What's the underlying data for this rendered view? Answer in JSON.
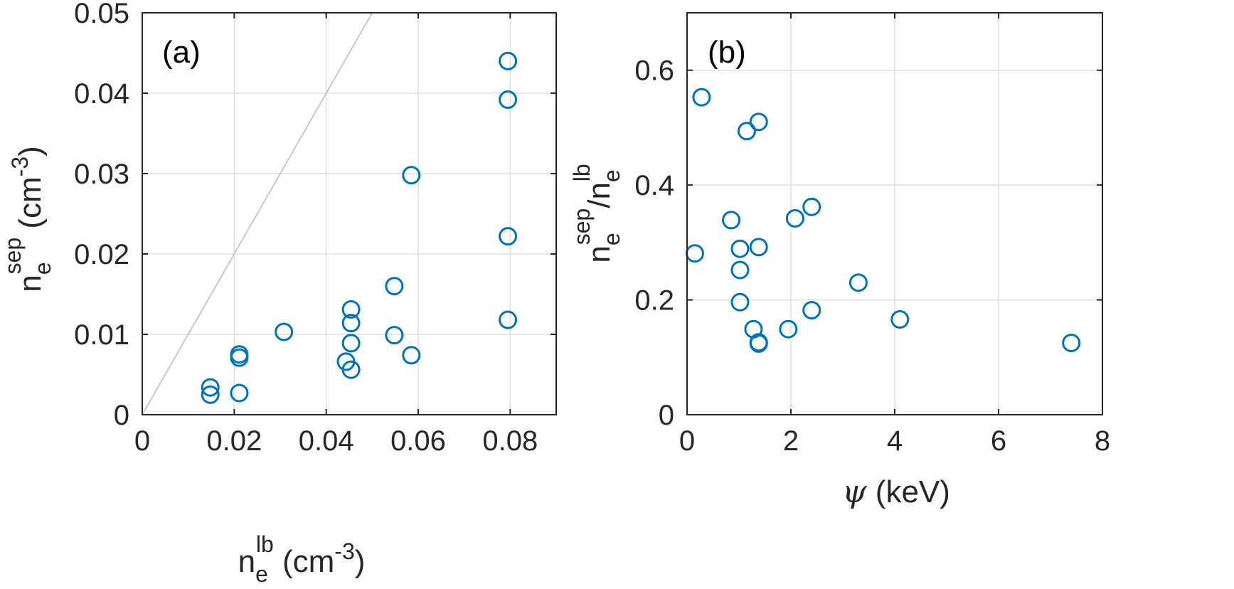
{
  "chart_data": [
    {
      "type": "scatter",
      "panel_label": "(a)",
      "xlabel": {
        "base": "n",
        "sub": "e",
        "sup": "lb",
        "unit_pre": " (cm",
        "unit_sup": "-3",
        "unit_post": ")"
      },
      "ylabel": {
        "base": "n",
        "sub": "e",
        "sup": "sep",
        "unit_pre": " (cm",
        "unit_sup": "-3",
        "unit_post": ")"
      },
      "xlim": [
        0,
        0.09
      ],
      "ylim": [
        0,
        0.05
      ],
      "xticks": [
        0,
        0.02,
        0.04,
        0.06,
        0.08
      ],
      "xtick_labels": [
        "0",
        "0.02",
        "0.04",
        "0.06",
        "0.08"
      ],
      "yticks": [
        0,
        0.01,
        0.02,
        0.03,
        0.04,
        0.05
      ],
      "ytick_labels": [
        "0",
        "0.01",
        "0.02",
        "0.03",
        "0.04",
        "0.05"
      ],
      "grid": true,
      "reference_line": {
        "x": [
          0,
          0.05
        ],
        "y": [
          0,
          0.05
        ],
        "color": "#c8c8c8"
      },
      "marker_color": "#0072BD",
      "points": [
        {
          "x": 0.0148,
          "y": 0.0034
        },
        {
          "x": 0.0148,
          "y": 0.0025
        },
        {
          "x": 0.0211,
          "y": 0.0075
        },
        {
          "x": 0.0211,
          "y": 0.0071
        },
        {
          "x": 0.0211,
          "y": 0.0027
        },
        {
          "x": 0.0308,
          "y": 0.0103
        },
        {
          "x": 0.0443,
          "y": 0.0066
        },
        {
          "x": 0.0454,
          "y": 0.0131
        },
        {
          "x": 0.0454,
          "y": 0.0114
        },
        {
          "x": 0.0454,
          "y": 0.0089
        },
        {
          "x": 0.0454,
          "y": 0.0056
        },
        {
          "x": 0.0548,
          "y": 0.016
        },
        {
          "x": 0.0548,
          "y": 0.0099
        },
        {
          "x": 0.0585,
          "y": 0.0298
        },
        {
          "x": 0.0585,
          "y": 0.0074
        },
        {
          "x": 0.0795,
          "y": 0.044
        },
        {
          "x": 0.0795,
          "y": 0.0392
        },
        {
          "x": 0.0795,
          "y": 0.0222
        },
        {
          "x": 0.0795,
          "y": 0.0118
        }
      ]
    },
    {
      "type": "scatter",
      "panel_label": "(b)",
      "xlabel": {
        "symbol": "ψ",
        "unit": " (keV)"
      },
      "ylabel": {
        "base": "n",
        "sub": "e",
        "sup": "sep",
        "slash": "/",
        "base2": "n",
        "sub2": "e",
        "sup2": "lb"
      },
      "xlim": [
        0,
        8
      ],
      "ylim": [
        0,
        0.7
      ],
      "xticks": [
        0,
        2,
        4,
        6,
        8
      ],
      "xtick_labels": [
        "0",
        "2",
        "4",
        "6",
        "8"
      ],
      "yticks": [
        0,
        0.2,
        0.4,
        0.6
      ],
      "ytick_labels": [
        "0",
        "0.2",
        "0.4",
        "0.6"
      ],
      "grid": true,
      "marker_color": "#0072BD",
      "points": [
        {
          "x": 0.15,
          "y": 0.281
        },
        {
          "x": 0.28,
          "y": 0.553
        },
        {
          "x": 0.85,
          "y": 0.339
        },
        {
          "x": 1.02,
          "y": 0.289
        },
        {
          "x": 1.02,
          "y": 0.252
        },
        {
          "x": 1.02,
          "y": 0.196
        },
        {
          "x": 1.15,
          "y": 0.494
        },
        {
          "x": 1.28,
          "y": 0.149
        },
        {
          "x": 1.38,
          "y": 0.51
        },
        {
          "x": 1.38,
          "y": 0.292
        },
        {
          "x": 1.38,
          "y": 0.126
        },
        {
          "x": 1.38,
          "y": 0.124
        },
        {
          "x": 1.95,
          "y": 0.149
        },
        {
          "x": 2.08,
          "y": 0.342
        },
        {
          "x": 2.4,
          "y": 0.362
        },
        {
          "x": 2.4,
          "y": 0.182
        },
        {
          "x": 3.3,
          "y": 0.23
        },
        {
          "x": 4.1,
          "y": 0.166
        },
        {
          "x": 7.4,
          "y": 0.125
        }
      ]
    }
  ]
}
